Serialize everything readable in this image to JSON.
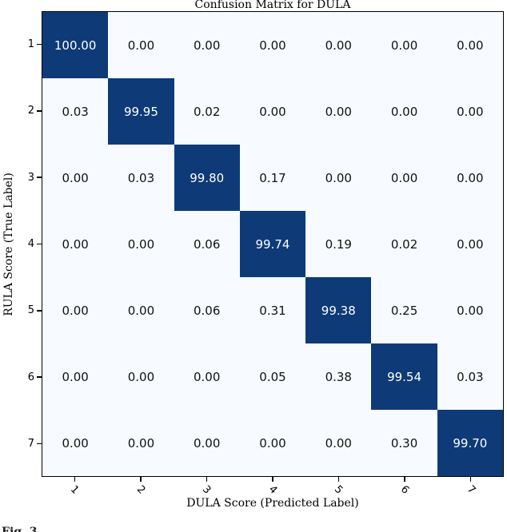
{
  "caption": "Fig. 3",
  "chart_data": {
    "type": "heatmap",
    "title": "Confusion Matrix for DULA",
    "xlabel": "DULA Score (Predicted Label)",
    "ylabel": "RULA Score (True Label)",
    "x_tick_labels": [
      "1",
      "2",
      "3",
      "4",
      "5",
      "6",
      "7"
    ],
    "y_tick_labels": [
      "1",
      "2",
      "3",
      "4",
      "5",
      "6",
      "7"
    ],
    "matrix": [
      [
        100.0,
        0.0,
        0.0,
        0.0,
        0.0,
        0.0,
        0.0
      ],
      [
        0.03,
        99.95,
        0.02,
        0.0,
        0.0,
        0.0,
        0.0
      ],
      [
        0.0,
        0.03,
        99.8,
        0.17,
        0.0,
        0.0,
        0.0
      ],
      [
        0.0,
        0.0,
        0.06,
        99.74,
        0.19,
        0.02,
        0.0
      ],
      [
        0.0,
        0.0,
        0.06,
        0.31,
        99.38,
        0.25,
        0.0
      ],
      [
        0.0,
        0.0,
        0.0,
        0.05,
        0.38,
        99.54,
        0.03
      ],
      [
        0.0,
        0.0,
        0.0,
        0.0,
        0.0,
        0.3,
        99.7
      ]
    ],
    "value_format": "two_decimals",
    "colormap": "Blues",
    "x_tick_rotation_deg": 45,
    "grid": false,
    "legend": "none",
    "colors": {
      "diagonal": "#0e3a78",
      "off_diagonal": "#f7fbff",
      "text_on_diagonal": "#ffffff",
      "text_on_off_diagonal": "#111111",
      "spine": "#000000"
    }
  }
}
